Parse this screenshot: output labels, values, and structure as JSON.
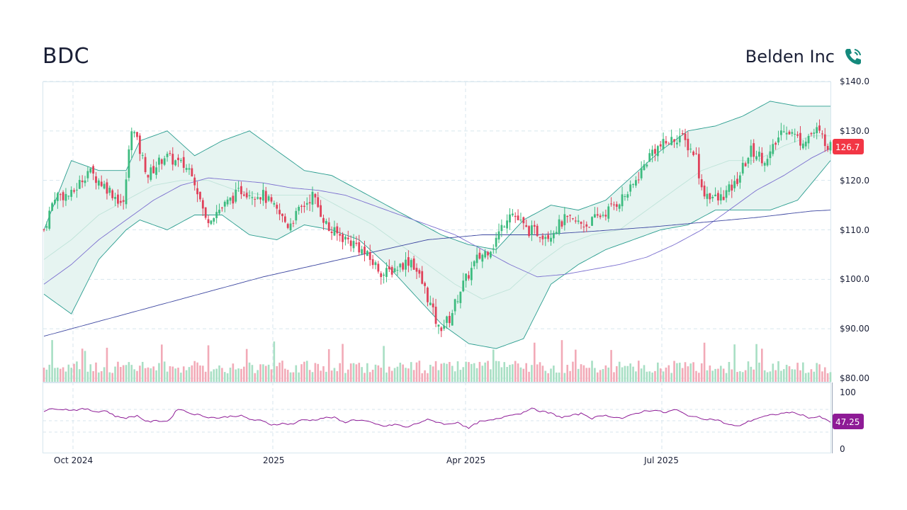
{
  "header": {
    "ticker": "BDC",
    "company_name": "Belden Inc",
    "icon": "phone-icon"
  },
  "colors": {
    "up": "#3dbb7f",
    "down": "#e0415a",
    "up_volume": "#a8dfc4",
    "down_volume": "#f2aab7",
    "band_fill": "#e6f4f1",
    "band_line": "#2a9d8f",
    "ma50": "#7b6fcf",
    "ma200": "#3c46a0",
    "rsi": "#8e1b96",
    "price_badge": "#f23645",
    "rsi_badge": "#8e1b96",
    "grid": "#d7e6ee",
    "icon": "#14897c"
  },
  "chart_data": [
    {
      "type": "candlestick",
      "title": "",
      "x_axis": {
        "ticks": [
          "Oct 2024",
          "2025",
          "Apr 2025",
          "Jul 2025"
        ]
      },
      "y_axis": {
        "min": 80,
        "max": 140,
        "ticks": [
          "$140.0",
          "$130.0",
          "$120.0",
          "$110.0",
          "$100.0",
          "$90.00",
          "$80.00"
        ]
      },
      "last_price_label": "126.7",
      "approx_close_path": [
        [
          0,
          110
        ],
        [
          4,
          117
        ],
        [
          10,
          117
        ],
        [
          16,
          122
        ],
        [
          24,
          118
        ],
        [
          29,
          115
        ],
        [
          32,
          131
        ],
        [
          38,
          121
        ],
        [
          44,
          125
        ],
        [
          54,
          122
        ],
        [
          59,
          112
        ],
        [
          66,
          115
        ],
        [
          72,
          118
        ],
        [
          80,
          117
        ],
        [
          89,
          111
        ],
        [
          98,
          117
        ],
        [
          104,
          110
        ],
        [
          114,
          107
        ],
        [
          124,
          101
        ],
        [
          134,
          104
        ],
        [
          139,
          98
        ],
        [
          144,
          90
        ],
        [
          148,
          92
        ],
        [
          152,
          98
        ],
        [
          158,
          104
        ],
        [
          164,
          107
        ],
        [
          170,
          114
        ],
        [
          176,
          110
        ],
        [
          184,
          109
        ],
        [
          190,
          112
        ],
        [
          198,
          111
        ],
        [
          206,
          114
        ],
        [
          214,
          118
        ],
        [
          222,
          126
        ],
        [
          232,
          129
        ],
        [
          238,
          125
        ],
        [
          240,
          118
        ],
        [
          246,
          116
        ],
        [
          252,
          119
        ],
        [
          258,
          126
        ],
        [
          264,
          124
        ],
        [
          270,
          131
        ],
        [
          276,
          128
        ],
        [
          282,
          130
        ],
        [
          287,
          126.7
        ]
      ],
      "bollinger_upper": [
        [
          0,
          110
        ],
        [
          10,
          124
        ],
        [
          20,
          122
        ],
        [
          30,
          122
        ],
        [
          35,
          128
        ],
        [
          45,
          130
        ],
        [
          55,
          125
        ],
        [
          65,
          128
        ],
        [
          75,
          130
        ],
        [
          85,
          126
        ],
        [
          95,
          122
        ],
        [
          105,
          121
        ],
        [
          115,
          118
        ],
        [
          125,
          115
        ],
        [
          135,
          112
        ],
        [
          145,
          109
        ],
        [
          155,
          107
        ],
        [
          165,
          106
        ],
        [
          175,
          112
        ],
        [
          185,
          115
        ],
        [
          195,
          114
        ],
        [
          205,
          116
        ],
        [
          215,
          121
        ],
        [
          225,
          126
        ],
        [
          235,
          130
        ],
        [
          245,
          131
        ],
        [
          255,
          133
        ],
        [
          265,
          136
        ],
        [
          275,
          135
        ],
        [
          287,
          135
        ]
      ],
      "bollinger_lower": [
        [
          0,
          97
        ],
        [
          10,
          93
        ],
        [
          20,
          104
        ],
        [
          30,
          110
        ],
        [
          35,
          112
        ],
        [
          45,
          110
        ],
        [
          55,
          113
        ],
        [
          65,
          113
        ],
        [
          75,
          109
        ],
        [
          85,
          108
        ],
        [
          95,
          111
        ],
        [
          105,
          110
        ],
        [
          115,
          108
        ],
        [
          125,
          103
        ],
        [
          135,
          97
        ],
        [
          145,
          91
        ],
        [
          155,
          87
        ],
        [
          165,
          86
        ],
        [
          175,
          88
        ],
        [
          185,
          99
        ],
        [
          195,
          103
        ],
        [
          205,
          106
        ],
        [
          215,
          108
        ],
        [
          225,
          110
        ],
        [
          235,
          111
        ],
        [
          245,
          114
        ],
        [
          255,
          114
        ],
        [
          265,
          114
        ],
        [
          275,
          116
        ],
        [
          287,
          124
        ]
      ],
      "bollinger_mid": [
        [
          0,
          104
        ],
        [
          10,
          108
        ],
        [
          20,
          113
        ],
        [
          30,
          116
        ],
        [
          40,
          119
        ],
        [
          50,
          120
        ],
        [
          60,
          120
        ],
        [
          70,
          118
        ],
        [
          80,
          117
        ],
        [
          90,
          117
        ],
        [
          100,
          117
        ],
        [
          110,
          114
        ],
        [
          120,
          111
        ],
        [
          130,
          107
        ],
        [
          140,
          103
        ],
        [
          150,
          99
        ],
        [
          160,
          96
        ],
        [
          170,
          98
        ],
        [
          180,
          103
        ],
        [
          190,
          107
        ],
        [
          200,
          109
        ],
        [
          210,
          110
        ],
        [
          220,
          114
        ],
        [
          230,
          118
        ],
        [
          240,
          122
        ],
        [
          250,
          124
        ],
        [
          260,
          124
        ],
        [
          270,
          127
        ],
        [
          280,
          129
        ],
        [
          287,
          129
        ]
      ],
      "ma50": [
        [
          0,
          99
        ],
        [
          10,
          103
        ],
        [
          20,
          108
        ],
        [
          30,
          112
        ],
        [
          40,
          116
        ],
        [
          50,
          119
        ],
        [
          60,
          120.5
        ],
        [
          70,
          120
        ],
        [
          80,
          119.5
        ],
        [
          90,
          118.5
        ],
        [
          100,
          118
        ],
        [
          110,
          117
        ],
        [
          120,
          115
        ],
        [
          130,
          113
        ],
        [
          140,
          111
        ],
        [
          150,
          109
        ],
        [
          160,
          106
        ],
        [
          170,
          103
        ],
        [
          180,
          100.5
        ],
        [
          190,
          101
        ],
        [
          200,
          102
        ],
        [
          210,
          103
        ],
        [
          220,
          104.5
        ],
        [
          230,
          107
        ],
        [
          240,
          110
        ],
        [
          250,
          114
        ],
        [
          260,
          118
        ],
        [
          270,
          121
        ],
        [
          280,
          124.5
        ],
        [
          287,
          126.5
        ]
      ],
      "ma200": [
        [
          0,
          88.5
        ],
        [
          20,
          91.5
        ],
        [
          40,
          94.5
        ],
        [
          60,
          97.5
        ],
        [
          80,
          100.5
        ],
        [
          100,
          103
        ],
        [
          120,
          105.5
        ],
        [
          140,
          108
        ],
        [
          160,
          109
        ],
        [
          180,
          109
        ],
        [
          200,
          109.7
        ],
        [
          220,
          110.5
        ],
        [
          240,
          111.5
        ],
        [
          260,
          112.5
        ],
        [
          280,
          113.8
        ],
        [
          287,
          114
        ]
      ],
      "volume_note": "volume bars at bottom of price panel"
    },
    {
      "type": "line",
      "title": "",
      "series": [
        {
          "name": "",
          "values": [
            67,
            72,
            70,
            69,
            71,
            66,
            68,
            57,
            55,
            59,
            48,
            50,
            49,
            72,
            64,
            60,
            56,
            55,
            58,
            59,
            52,
            50,
            43,
            45,
            44,
            52,
            51,
            55,
            56,
            47,
            52,
            50,
            44,
            40,
            44,
            38,
            45,
            52,
            48,
            43,
            48,
            36,
            48,
            50,
            54,
            61,
            62,
            72,
            67,
            63,
            56,
            59,
            63,
            54,
            60,
            57,
            54,
            62,
            67,
            69,
            64,
            70,
            61,
            56,
            53,
            52,
            44,
            40,
            48,
            55,
            59,
            62,
            65,
            62,
            55,
            57,
            47.25
          ]
        }
      ],
      "y_axis": {
        "min": 0,
        "max": 100,
        "ticks": [
          "100",
          "0"
        ]
      },
      "last_value_label": "47.25"
    }
  ]
}
